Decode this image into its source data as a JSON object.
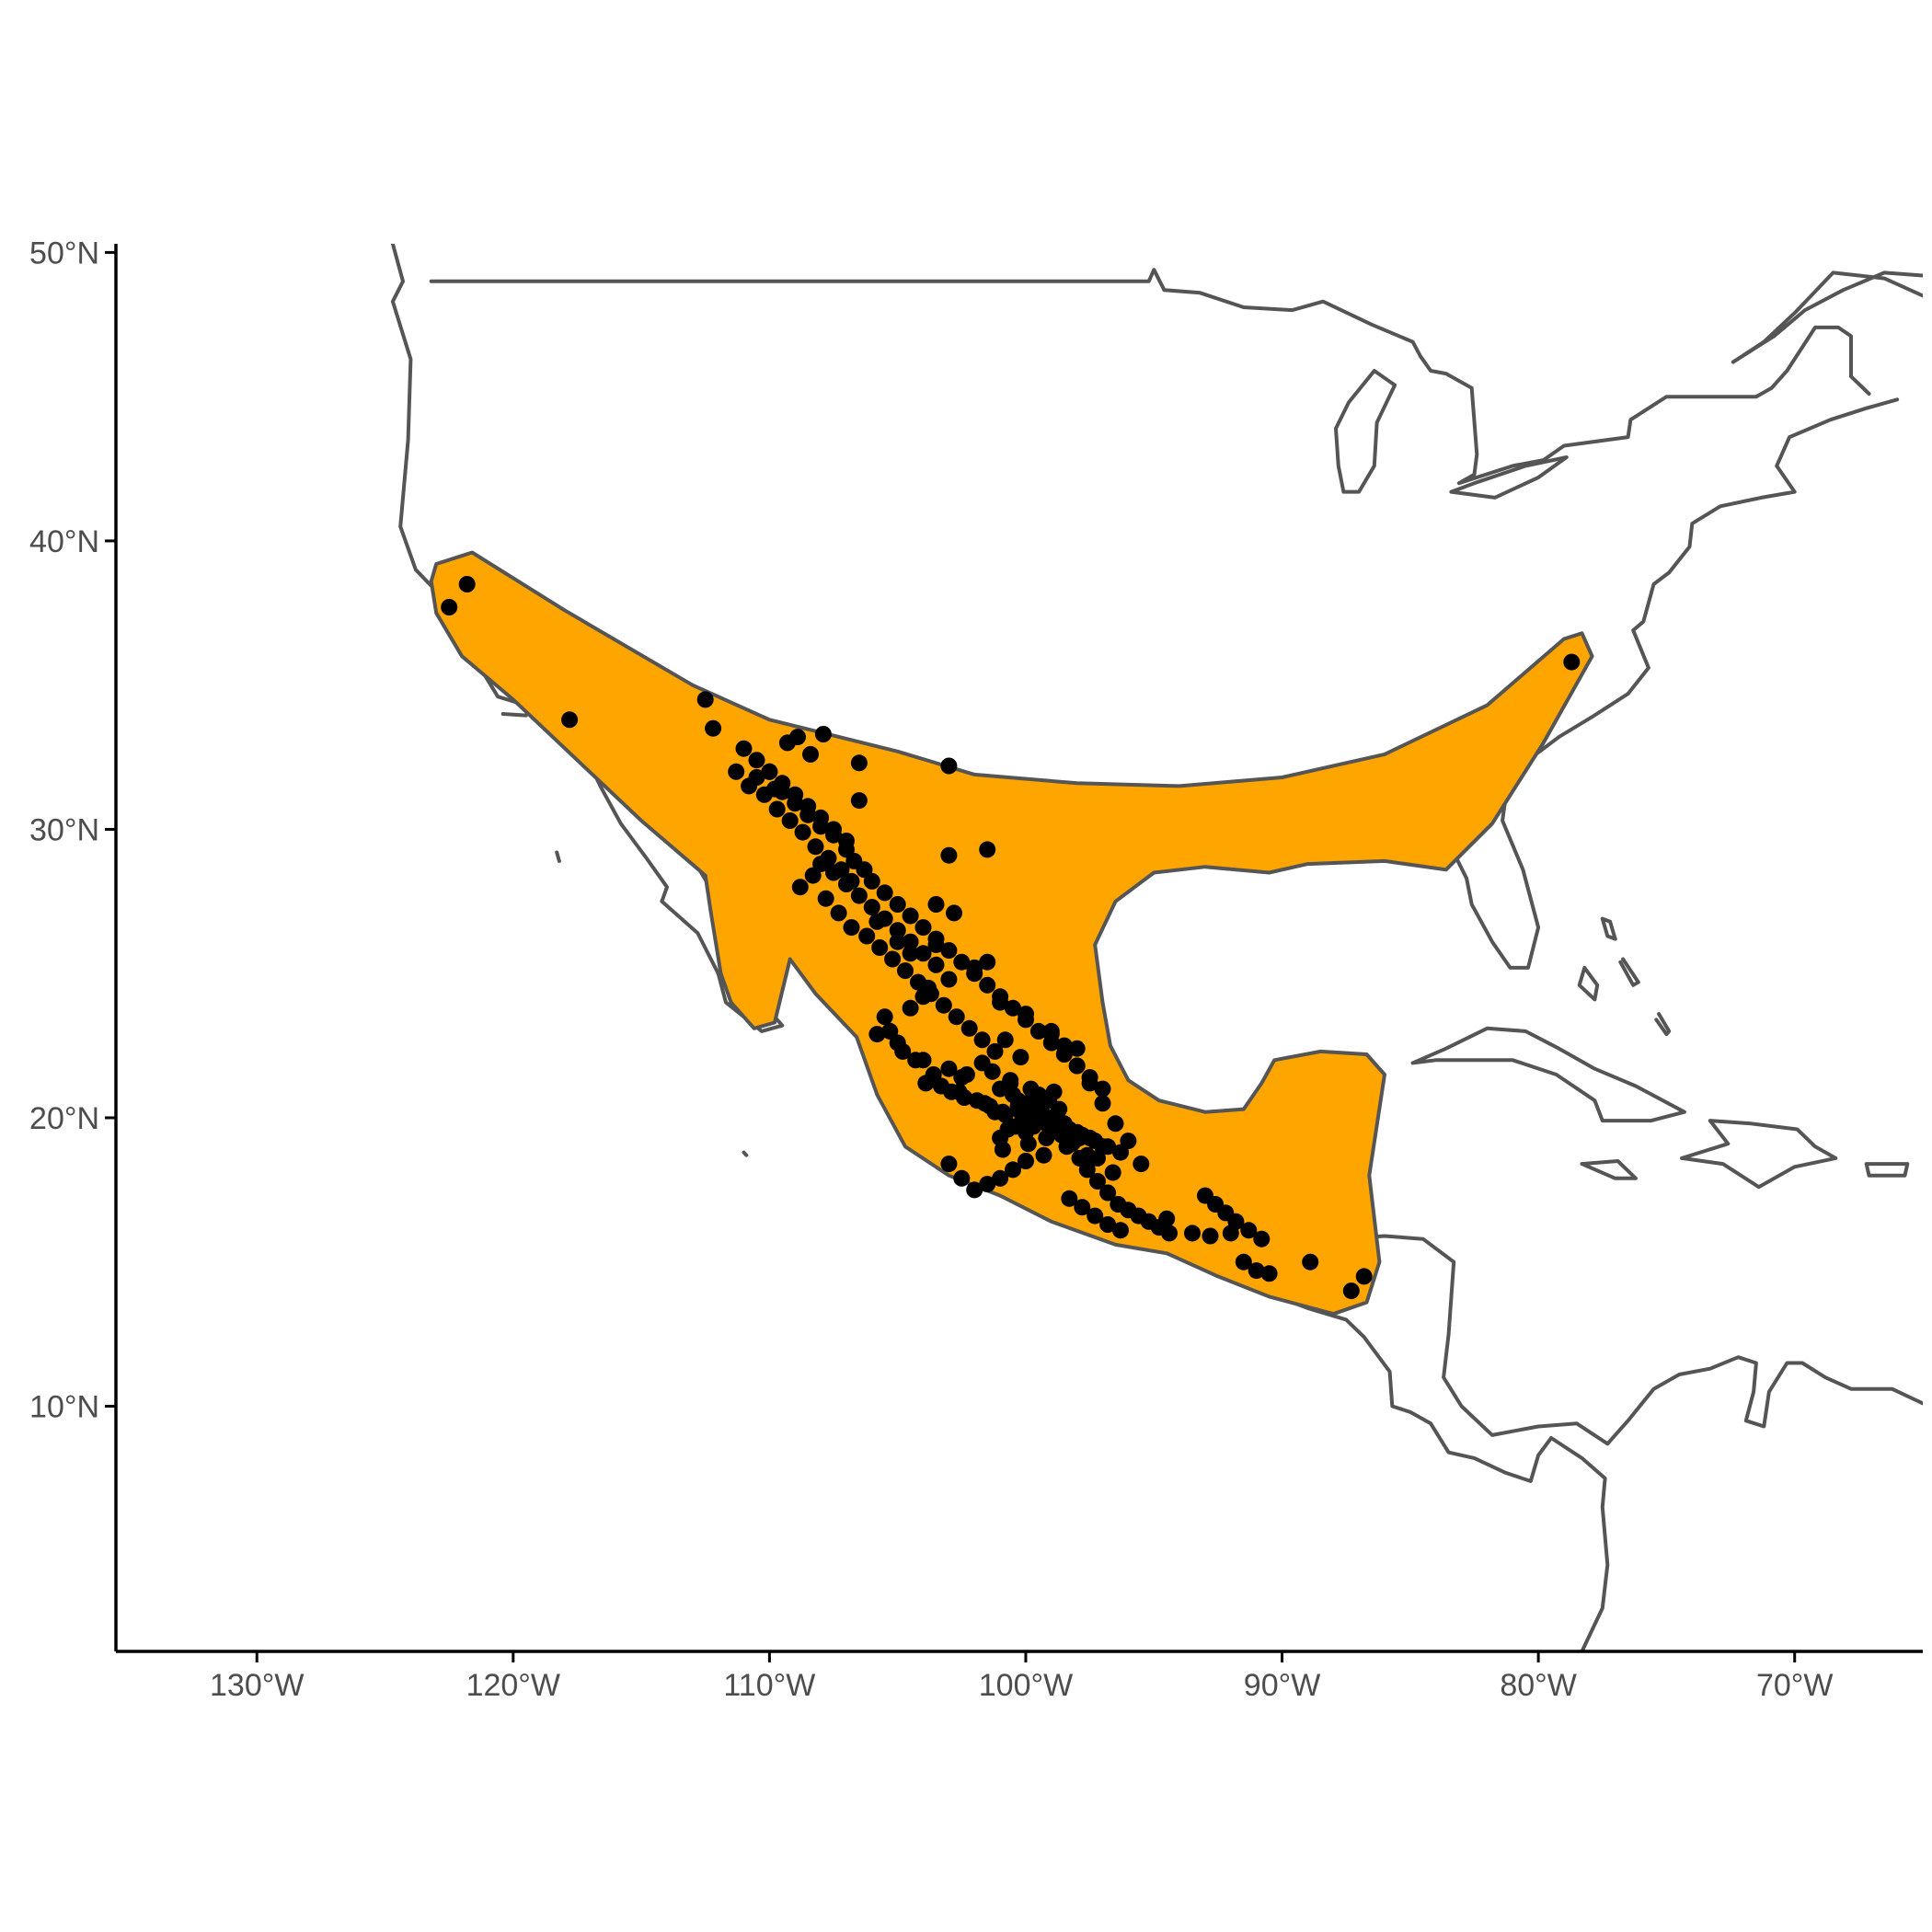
{
  "colors": {
    "range_fill": "#FFA500",
    "range_stroke": "#555555",
    "coast_stroke": "#555555",
    "point": "#000000",
    "axis": "#000000",
    "tick_label": "#4d4d4d",
    "background": "#ffffff"
  },
  "chart_data": {
    "type": "scatter",
    "title": "",
    "xlabel": "",
    "ylabel": "",
    "xlim": [
      -135.5,
      -65
    ],
    "ylim": [
      1.5,
      50.3
    ],
    "grid": false,
    "legend": "none",
    "x_ticks": [
      -130,
      -120,
      -110,
      -100,
      -90,
      -80,
      -70
    ],
    "x_tick_labels": [
      "130°W",
      "120°W",
      "110°W",
      "100°W",
      "90°W",
      "80°W",
      "70°W"
    ],
    "y_ticks": [
      10,
      20,
      30,
      40,
      50
    ],
    "y_tick_labels": [
      "10°N",
      "20°N",
      "30°N",
      "40°N",
      "50°N"
    ],
    "range_polygon": [
      [
        -123.0,
        39.2
      ],
      [
        -121.6,
        39.6
      ],
      [
        -118.0,
        37.6
      ],
      [
        -113.0,
        35.0
      ],
      [
        -110.0,
        33.8
      ],
      [
        -105.0,
        32.7
      ],
      [
        -102.0,
        31.9
      ],
      [
        -98.0,
        31.6
      ],
      [
        -94.0,
        31.5
      ],
      [
        -90.0,
        31.8
      ],
      [
        -86.0,
        32.6
      ],
      [
        -82.0,
        34.3
      ],
      [
        -79.0,
        36.6
      ],
      [
        -78.3,
        36.8
      ],
      [
        -77.9,
        36.0
      ],
      [
        -79.8,
        33.0
      ],
      [
        -81.8,
        30.2
      ],
      [
        -83.6,
        28.6
      ],
      [
        -86.0,
        28.9
      ],
      [
        -89.0,
        28.8
      ],
      [
        -90.5,
        28.5
      ],
      [
        -93.0,
        28.7
      ],
      [
        -95.0,
        28.5
      ],
      [
        -96.5,
        27.5
      ],
      [
        -97.3,
        26.0
      ],
      [
        -97.0,
        24.0
      ],
      [
        -96.7,
        22.5
      ],
      [
        -96.0,
        21.3
      ],
      [
        -94.8,
        20.6
      ],
      [
        -93.0,
        20.2
      ],
      [
        -91.5,
        20.3
      ],
      [
        -90.8,
        21.2
      ],
      [
        -90.3,
        22.0
      ],
      [
        -88.5,
        22.3
      ],
      [
        -86.7,
        22.2
      ],
      [
        -86.0,
        21.5
      ],
      [
        -86.6,
        18.0
      ],
      [
        -86.2,
        15.0
      ],
      [
        -86.7,
        13.6
      ],
      [
        -88.0,
        13.2
      ],
      [
        -90.5,
        13.8
      ],
      [
        -92.5,
        14.5
      ],
      [
        -94.5,
        15.3
      ],
      [
        -96.5,
        15.6
      ],
      [
        -99.0,
        16.4
      ],
      [
        -101.0,
        17.3
      ],
      [
        -103.0,
        18.0
      ],
      [
        -104.7,
        19.0
      ],
      [
        -105.8,
        20.8
      ],
      [
        -106.6,
        22.8
      ],
      [
        -108.2,
        24.3
      ],
      [
        -109.2,
        25.5
      ],
      [
        -109.8,
        23.3
      ],
      [
        -110.6,
        23.1
      ],
      [
        -111.5,
        24.0
      ],
      [
        -111.9,
        25.0
      ],
      [
        -112.3,
        27.2
      ],
      [
        -112.5,
        28.4
      ],
      [
        -115.0,
        30.3
      ],
      [
        -117.5,
        32.4
      ],
      [
        -120.0,
        34.5
      ],
      [
        -122.0,
        36.0
      ],
      [
        -123.0,
        37.5
      ],
      [
        -123.2,
        38.6
      ]
    ],
    "series": [
      {
        "x": [
          -121.8,
          -122.5,
          -117.8,
          -78.7,
          -112.5,
          -112.2,
          -110.0,
          -103.0,
          -101.5,
          -103.0,
          -103.5,
          -102.8,
          -103.5,
          -106.5,
          -106.5,
          -105.0,
          -105.8,
          -104.5,
          -99.0,
          -98.5,
          -98.0,
          -97.5,
          -97.0,
          -96.5,
          -96.0,
          -95.5,
          -94.5,
          -93.5,
          -92.8,
          -92.0,
          -91.5,
          -91.0,
          -90.5,
          -88.9,
          -87.3,
          -86.8,
          -101.5,
          -102.0,
          -103.0,
          -103.8,
          -104.0,
          -104.5,
          -105.5,
          -105.3,
          -105.0,
          -104.0,
          -103.0,
          -102.5,
          -101.0,
          -100.5,
          -100.0,
          -99.5,
          -99.0,
          -98.5,
          -98.0,
          -97.5,
          -97.0,
          -100.0,
          -100.5,
          -101.0,
          -101.5,
          -102.0,
          -102.5,
          -103.0,
          -101.0,
          -100.0,
          -99.0,
          -98.0,
          -100.8,
          -100.2,
          -101.7,
          -102.3,
          -109.5,
          -109.0,
          -108.5,
          -108.0,
          -107.5,
          -107.0,
          -106.7,
          -106.3,
          -106.0,
          -105.5,
          -105.0,
          -104.5,
          -104.0,
          -103.5,
          -103.0,
          -102.5,
          -102.0,
          -101.5,
          -101.0,
          -100.5,
          -100.0,
          -99.5,
          -99.0,
          -98.5,
          -98.0,
          -97.5,
          -97.0,
          -111.0,
          -110.5,
          -110.0,
          -109.5,
          -109.0,
          -108.5,
          -108.0,
          -107.5,
          -107.0,
          -111.3,
          -110.8,
          -110.2,
          -109.7,
          -109.2,
          -108.7,
          -108.2,
          -107.7,
          -107.2,
          -106.8,
          -100.3,
          -99.8,
          -99.3,
          -98.8,
          -98.3,
          -97.8,
          -97.3,
          -96.8,
          -96.3,
          -100.0,
          -99.7,
          -99.4,
          -99.1,
          -98.8,
          -100.4,
          -100.1,
          -99.6,
          -99.2,
          -98.6,
          -101.2,
          -100.7,
          -99.9,
          -99.5,
          -98.9,
          -100.6,
          -100.3,
          -99.8,
          -99.1,
          -98.7,
          -101.0,
          -100.9,
          -99.3,
          -98.4,
          -97.9,
          -97.6,
          -97.2,
          -96.8,
          -96.4,
          -96.0,
          -95.6,
          -95.2,
          -94.8,
          -94.4,
          -108.3,
          -108.8,
          -107.8,
          -107.3,
          -106.8,
          -106.2,
          -105.7,
          -105.2,
          -104.7,
          -104.2,
          -103.7,
          -103.2,
          -102.7,
          -102.2,
          -101.7,
          -101.2,
          -108.0,
          -107.5,
          -107.0,
          -106.5,
          -106.0,
          -105.5,
          -105.0,
          -104.5,
          -104.0,
          -103.5,
          -98.3,
          -97.8,
          -97.3,
          -96.8,
          -96.3,
          -93.0,
          -92.6,
          -92.2,
          -91.8,
          -91.3,
          -90.8,
          -110.5,
          -109.8,
          -109.3,
          -108.9,
          -108.4,
          -107.9,
          -104.8,
          -103.9,
          -102.9,
          -101.9,
          -100.9,
          -99.9,
          -98.9,
          -97.9,
          -101.3,
          -100.6,
          -99.6,
          -98.6,
          -97.6,
          -96.6,
          -103.3,
          -102.4,
          -101.4,
          -100.2,
          -99.2,
          -98.2,
          -97.2,
          -105.8,
          -104.3,
          -103.6,
          -102.6,
          -101.6,
          -100.8,
          -99.7,
          -98.1
        ],
        "y": [
          38.5,
          37.7,
          33.8,
          35.8,
          34.5,
          33.5,
          32.0,
          32.2,
          29.3,
          29.1,
          27.4,
          27.1,
          26.0,
          31.0,
          32.3,
          26.1,
          26.8,
          25.7,
          23.0,
          22.5,
          21.8,
          21.2,
          20.5,
          19.8,
          19.2,
          18.4,
          16.5,
          16.0,
          15.9,
          16.0,
          15.0,
          14.7,
          14.6,
          15.0,
          14.0,
          14.5,
          25.4,
          25.2,
          24.8,
          24.5,
          24.2,
          23.8,
          23.5,
          23.0,
          22.6,
          22.0,
          21.7,
          21.4,
          21.0,
          20.8,
          20.5,
          20.3,
          20.0,
          19.8,
          19.5,
          19.3,
          19.0,
          18.5,
          18.2,
          17.9,
          17.7,
          17.5,
          17.9,
          18.4,
          24.0,
          23.6,
          22.9,
          22.4,
          22.7,
          22.1,
          21.9,
          21.5,
          31.3,
          30.9,
          30.5,
          30.1,
          29.8,
          29.3,
          28.9,
          28.6,
          28.2,
          27.8,
          27.4,
          27.0,
          26.6,
          26.2,
          25.8,
          25.4,
          25.0,
          24.6,
          24.2,
          23.8,
          23.4,
          23.0,
          22.6,
          22.2,
          21.8,
          21.4,
          21.0,
          32.8,
          32.4,
          32.0,
          31.6,
          31.2,
          30.8,
          30.4,
          30.0,
          29.6,
          32.0,
          31.5,
          31.2,
          30.7,
          30.3,
          29.9,
          29.4,
          29.0,
          28.6,
          28.2,
          20.4,
          20.2,
          20.0,
          19.8,
          19.6,
          19.4,
          19.2,
          19.0,
          18.8,
          19.5,
          19.9,
          20.3,
          20.6,
          20.1,
          19.7,
          20.0,
          20.4,
          19.3,
          19.7,
          20.2,
          19.6,
          19.1,
          20.8,
          20.9,
          21.2,
          20.6,
          21.0,
          20.7,
          20.3,
          19.3,
          18.9,
          18.7,
          19.0,
          18.6,
          18.2,
          17.8,
          17.4,
          17.0,
          16.8,
          16.6,
          16.4,
          16.2,
          16.0,
          28.4,
          28.0,
          27.6,
          27.1,
          26.6,
          26.3,
          25.9,
          25.5,
          25.1,
          24.7,
          24.3,
          23.9,
          23.5,
          23.1,
          22.7,
          22.3,
          28.8,
          28.5,
          28.1,
          27.7,
          27.3,
          26.9,
          26.5,
          26.1,
          25.7,
          25.3,
          17.2,
          16.9,
          16.6,
          16.3,
          16.1,
          17.3,
          17.0,
          16.7,
          16.4,
          16.1,
          15.8,
          31.8,
          31.4,
          33.0,
          33.2,
          32.6,
          33.3,
          22.3,
          21.2,
          20.9,
          20.6,
          20.2,
          19.9,
          19.6,
          19.3,
          21.6,
          21.3,
          20.0,
          19.4,
          18.7,
          18.1,
          21.1,
          20.7,
          20.4,
          20.2,
          19.8,
          19.1,
          18.6,
          22.9,
          22.0,
          21.5,
          20.9,
          20.5,
          20.1,
          19.7,
          19.2
        ]
      }
    ]
  }
}
